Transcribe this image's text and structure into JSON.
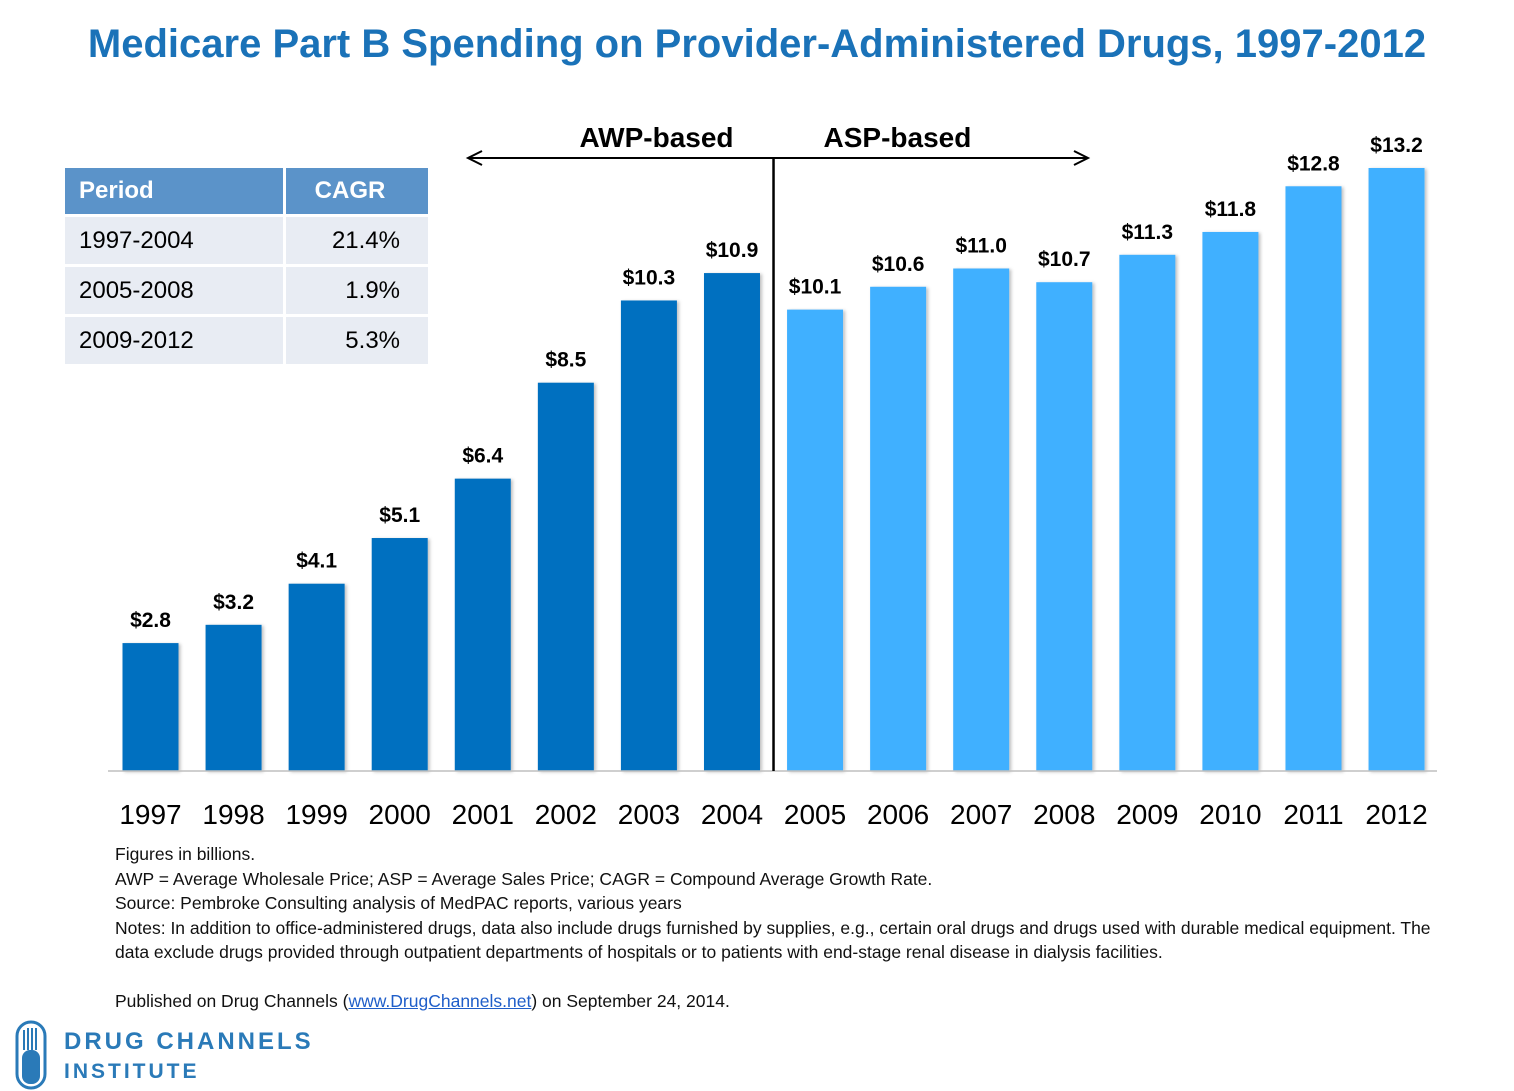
{
  "title": "Medicare Part B Spending on Provider-Administered Drugs, 1997-2012",
  "colors": {
    "awp_bar": "#0070c0",
    "asp_bar": "#40b0ff",
    "title": "#1a72b8"
  },
  "chart_data": {
    "type": "bar",
    "title": "Medicare Part B Spending on Provider-Administered Drugs, 1997-2012",
    "categories": [
      "1997",
      "1998",
      "1999",
      "2000",
      "2001",
      "2002",
      "2003",
      "2004",
      "2005",
      "2006",
      "2007",
      "2008",
      "2009",
      "2010",
      "2011",
      "2012"
    ],
    "values": [
      2.8,
      3.2,
      4.1,
      5.1,
      6.4,
      8.5,
      10.3,
      10.9,
      10.1,
      10.6,
      11.0,
      10.7,
      11.3,
      11.8,
      12.8,
      13.2
    ],
    "value_labels": [
      "$2.8",
      "$3.2",
      "$4.1",
      "$5.1",
      "$6.4",
      "$8.5",
      "$10.3",
      "$10.9",
      "$10.1",
      "$10.6",
      "$11.0",
      "$10.7",
      "$11.3",
      "$11.8",
      "$12.8",
      "$13.2"
    ],
    "segments": [
      {
        "name": "AWP-based",
        "from": "1997",
        "to": "2004"
      },
      {
        "name": "ASP-based",
        "from": "2005",
        "to": "2012"
      }
    ],
    "ylim": [
      0,
      13.2
    ],
    "xlabel": "",
    "ylabel": "",
    "units": "billions"
  },
  "table": {
    "headers": [
      "Period",
      "CAGR"
    ],
    "rows": [
      [
        "1997-2004",
        "21.4%"
      ],
      [
        "2005-2008",
        "1.9%"
      ],
      [
        "2009-2012",
        "5.3%"
      ]
    ]
  },
  "notes": {
    "line1": "Figures in billions.",
    "line2": "AWP = Average Wholesale Price; ASP = Average Sales Price; CAGR = Compound Average Growth Rate.",
    "line3": "Source: Pembroke Consulting analysis of MedPAC reports, various years",
    "line4": "Notes: In addition to office-administered drugs, data also include drugs furnished by supplies, e.g., certain oral drugs and drugs used with durable medical equipment. The data exclude drugs provided through outpatient departments of hospitals or to patients with end-stage renal disease in dialysis facilities.",
    "published_prefix": "Published on Drug Channels (",
    "published_link": "www.DrugChannels.net",
    "published_suffix": ") on September 24, 2014."
  },
  "logo": {
    "line1": "DRUG CHANNELS",
    "line2": "INSTITUTE"
  }
}
